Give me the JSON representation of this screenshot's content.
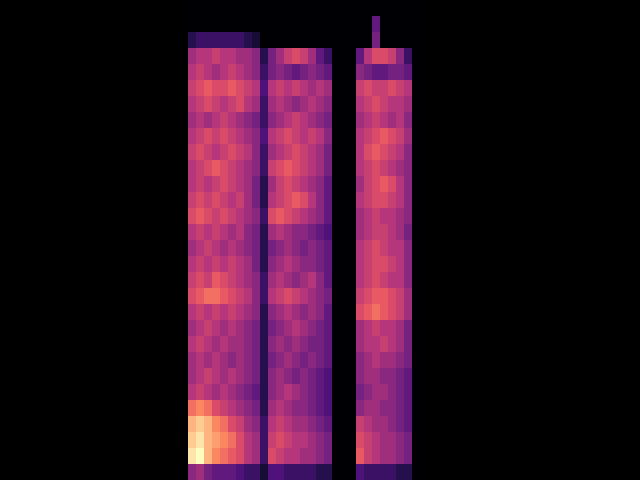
{
  "chart_data": {
    "type": "heatmap",
    "x": [
      192,
      200,
      208,
      216,
      224,
      232,
      240,
      248,
      256,
      264,
      272,
      280,
      288,
      296,
      304,
      312,
      320,
      328,
      336,
      344,
      352,
      360,
      368,
      376,
      384,
      392,
      400,
      408,
      416
    ],
    "y": [
      8,
      24,
      40,
      56,
      72,
      88,
      104,
      120,
      136,
      152,
      168,
      184,
      200,
      216,
      232,
      248,
      264,
      280,
      296,
      312,
      328,
      344,
      360,
      376,
      392,
      408,
      424,
      440,
      456,
      472
    ],
    "cells": [
      [
        0,
        0,
        0,
        0,
        0,
        0,
        0,
        0,
        0,
        0,
        0,
        0,
        0,
        0,
        0,
        0,
        0,
        0,
        0,
        0,
        0,
        0,
        0,
        0,
        0,
        0,
        0,
        0,
        0
      ],
      [
        0,
        0,
        0,
        0,
        0,
        0,
        0,
        0,
        0,
        0,
        0,
        0,
        0,
        0,
        0,
        0,
        0,
        0,
        0,
        0,
        0,
        0,
        0,
        0.3,
        0,
        0,
        0,
        0,
        0
      ],
      [
        0.15,
        0.2,
        0.2,
        0.2,
        0.2,
        0.2,
        0.2,
        0.15,
        0.1,
        0,
        0,
        0,
        0,
        0,
        0,
        0,
        0,
        0,
        0,
        0,
        0,
        0,
        0,
        0.35,
        0,
        0,
        0,
        0,
        0
      ],
      [
        0.45,
        0.5,
        0.5,
        0.55,
        0.5,
        0.5,
        0.45,
        0.45,
        0.4,
        0.15,
        0.35,
        0.45,
        0.55,
        0.6,
        0.55,
        0.45,
        0.3,
        0.2,
        0,
        0,
        0,
        0.3,
        0.5,
        0.6,
        0.6,
        0.55,
        0.4,
        0.2,
        0
      ],
      [
        0.5,
        0.55,
        0.5,
        0.45,
        0.5,
        0.55,
        0.5,
        0.45,
        0.4,
        0.2,
        0.35,
        0.4,
        0.35,
        0.3,
        0.35,
        0.4,
        0.35,
        0.3,
        0,
        0,
        0,
        0.4,
        0.35,
        0.3,
        0.3,
        0.35,
        0.35,
        0.3,
        0
      ],
      [
        0.55,
        0.6,
        0.65,
        0.6,
        0.6,
        0.65,
        0.6,
        0.55,
        0.5,
        0.25,
        0.5,
        0.55,
        0.5,
        0.55,
        0.5,
        0.45,
        0.5,
        0.45,
        0,
        0,
        0,
        0.55,
        0.6,
        0.55,
        0.55,
        0.6,
        0.55,
        0.5,
        0
      ],
      [
        0.5,
        0.55,
        0.6,
        0.55,
        0.5,
        0.55,
        0.6,
        0.5,
        0.45,
        0.2,
        0.45,
        0.5,
        0.45,
        0.4,
        0.45,
        0.5,
        0.45,
        0.4,
        0,
        0,
        0,
        0.5,
        0.55,
        0.6,
        0.55,
        0.5,
        0.5,
        0.45,
        0
      ],
      [
        0.45,
        0.5,
        0.45,
        0.5,
        0.55,
        0.5,
        0.45,
        0.4,
        0.35,
        0.2,
        0.4,
        0.45,
        0.5,
        0.55,
        0.5,
        0.45,
        0.4,
        0.35,
        0,
        0,
        0,
        0.45,
        0.5,
        0.55,
        0.5,
        0.45,
        0.5,
        0.4,
        0
      ],
      [
        0.5,
        0.55,
        0.6,
        0.55,
        0.6,
        0.55,
        0.5,
        0.45,
        0.4,
        0.25,
        0.5,
        0.55,
        0.6,
        0.55,
        0.5,
        0.55,
        0.5,
        0.4,
        0,
        0,
        0,
        0.5,
        0.55,
        0.6,
        0.65,
        0.6,
        0.55,
        0.45,
        0
      ],
      [
        0.55,
        0.6,
        0.55,
        0.5,
        0.55,
        0.6,
        0.55,
        0.5,
        0.4,
        0.2,
        0.45,
        0.5,
        0.55,
        0.6,
        0.55,
        0.5,
        0.45,
        0.35,
        0,
        0,
        0,
        0.5,
        0.6,
        0.65,
        0.6,
        0.55,
        0.5,
        0.4,
        0
      ],
      [
        0.5,
        0.55,
        0.6,
        0.65,
        0.6,
        0.55,
        0.5,
        0.45,
        0.4,
        0.2,
        0.55,
        0.6,
        0.65,
        0.6,
        0.55,
        0.5,
        0.45,
        0.35,
        0,
        0,
        0,
        0.5,
        0.55,
        0.6,
        0.55,
        0.5,
        0.45,
        0.4,
        0
      ],
      [
        0.5,
        0.55,
        0.5,
        0.55,
        0.6,
        0.55,
        0.5,
        0.45,
        0.35,
        0.15,
        0.45,
        0.55,
        0.6,
        0.55,
        0.5,
        0.45,
        0.4,
        0.3,
        0,
        0,
        0,
        0.45,
        0.55,
        0.6,
        0.65,
        0.6,
        0.5,
        0.4,
        0
      ],
      [
        0.55,
        0.6,
        0.55,
        0.6,
        0.55,
        0.5,
        0.55,
        0.45,
        0.35,
        0.15,
        0.5,
        0.55,
        0.6,
        0.65,
        0.6,
        0.5,
        0.4,
        0.3,
        0,
        0,
        0,
        0.5,
        0.55,
        0.6,
        0.6,
        0.55,
        0.5,
        0.4,
        0
      ],
      [
        0.6,
        0.65,
        0.6,
        0.55,
        0.6,
        0.55,
        0.5,
        0.45,
        0.4,
        0.2,
        0.6,
        0.65,
        0.6,
        0.55,
        0.5,
        0.45,
        0.4,
        0.3,
        0,
        0,
        0,
        0.45,
        0.5,
        0.55,
        0.5,
        0.5,
        0.45,
        0.4,
        0
      ],
      [
        0.5,
        0.55,
        0.5,
        0.55,
        0.5,
        0.45,
        0.5,
        0.4,
        0.35,
        0.15,
        0.45,
        0.5,
        0.45,
        0.4,
        0.4,
        0.35,
        0.3,
        0.25,
        0,
        0,
        0,
        0.45,
        0.5,
        0.55,
        0.55,
        0.5,
        0.45,
        0.35,
        0
      ],
      [
        0.45,
        0.5,
        0.55,
        0.5,
        0.45,
        0.5,
        0.45,
        0.4,
        0.35,
        0.15,
        0.35,
        0.4,
        0.45,
        0.4,
        0.35,
        0.4,
        0.35,
        0.3,
        0,
        0,
        0,
        0.5,
        0.55,
        0.6,
        0.55,
        0.5,
        0.5,
        0.4,
        0
      ],
      [
        0.5,
        0.55,
        0.5,
        0.55,
        0.5,
        0.55,
        0.5,
        0.45,
        0.35,
        0.15,
        0.4,
        0.45,
        0.5,
        0.45,
        0.4,
        0.4,
        0.35,
        0.3,
        0,
        0,
        0,
        0.5,
        0.55,
        0.6,
        0.6,
        0.55,
        0.5,
        0.4,
        0
      ],
      [
        0.55,
        0.6,
        0.55,
        0.65,
        0.6,
        0.55,
        0.5,
        0.45,
        0.4,
        0.2,
        0.45,
        0.5,
        0.45,
        0.4,
        0.45,
        0.5,
        0.4,
        0.3,
        0,
        0,
        0,
        0.5,
        0.55,
        0.6,
        0.55,
        0.5,
        0.5,
        0.4,
        0
      ],
      [
        0.6,
        0.65,
        0.7,
        0.7,
        0.65,
        0.6,
        0.55,
        0.5,
        0.4,
        0.2,
        0.5,
        0.55,
        0.6,
        0.55,
        0.5,
        0.45,
        0.4,
        0.35,
        0,
        0,
        0,
        0.55,
        0.6,
        0.65,
        0.65,
        0.6,
        0.55,
        0.45,
        0
      ],
      [
        0.5,
        0.55,
        0.5,
        0.55,
        0.5,
        0.55,
        0.5,
        0.45,
        0.4,
        0.15,
        0.4,
        0.45,
        0.5,
        0.45,
        0.4,
        0.45,
        0.4,
        0.3,
        0,
        0,
        0,
        0.6,
        0.65,
        0.7,
        0.65,
        0.6,
        0.55,
        0.45,
        0
      ],
      [
        0.45,
        0.5,
        0.55,
        0.5,
        0.45,
        0.5,
        0.45,
        0.4,
        0.35,
        0.15,
        0.35,
        0.4,
        0.45,
        0.5,
        0.45,
        0.4,
        0.35,
        0.3,
        0,
        0,
        0,
        0.45,
        0.5,
        0.55,
        0.5,
        0.5,
        0.45,
        0.35,
        0
      ],
      [
        0.5,
        0.55,
        0.5,
        0.45,
        0.5,
        0.45,
        0.45,
        0.4,
        0.35,
        0.15,
        0.4,
        0.45,
        0.4,
        0.45,
        0.4,
        0.35,
        0.35,
        0.3,
        0,
        0,
        0,
        0.45,
        0.5,
        0.5,
        0.55,
        0.5,
        0.45,
        0.35,
        0
      ],
      [
        0.45,
        0.5,
        0.45,
        0.5,
        0.45,
        0.4,
        0.45,
        0.4,
        0.35,
        0.15,
        0.35,
        0.4,
        0.45,
        0.4,
        0.35,
        0.4,
        0.35,
        0.3,
        0,
        0,
        0,
        0.4,
        0.45,
        0.5,
        0.45,
        0.45,
        0.4,
        0.35,
        0
      ],
      [
        0.45,
        0.5,
        0.55,
        0.5,
        0.45,
        0.5,
        0.45,
        0.4,
        0.35,
        0.15,
        0.4,
        0.45,
        0.4,
        0.35,
        0.4,
        0.35,
        0.3,
        0.25,
        0,
        0,
        0,
        0.4,
        0.45,
        0.45,
        0.4,
        0.4,
        0.35,
        0.3,
        0
      ],
      [
        0.5,
        0.55,
        0.5,
        0.45,
        0.5,
        0.45,
        0.4,
        0.35,
        0.3,
        0.15,
        0.4,
        0.45,
        0.5,
        0.45,
        0.4,
        0.35,
        0.3,
        0.25,
        0,
        0,
        0,
        0.35,
        0.4,
        0.45,
        0.45,
        0.4,
        0.35,
        0.3,
        0
      ],
      [
        0.7,
        0.75,
        0.7,
        0.6,
        0.55,
        0.5,
        0.45,
        0.4,
        0.35,
        0.15,
        0.45,
        0.5,
        0.45,
        0.4,
        0.4,
        0.35,
        0.3,
        0.25,
        0,
        0,
        0,
        0.4,
        0.45,
        0.45,
        0.4,
        0.4,
        0.35,
        0.3,
        0
      ],
      [
        0.85,
        0.9,
        0.85,
        0.75,
        0.7,
        0.6,
        0.55,
        0.45,
        0.4,
        0.2,
        0.5,
        0.55,
        0.5,
        0.45,
        0.45,
        0.4,
        0.35,
        0.3,
        0,
        0,
        0,
        0.55,
        0.5,
        0.45,
        0.45,
        0.4,
        0.35,
        0.3,
        0
      ],
      [
        0.9,
        0.95,
        0.85,
        0.8,
        0.75,
        0.7,
        0.6,
        0.5,
        0.45,
        0.2,
        0.55,
        0.6,
        0.55,
        0.5,
        0.5,
        0.45,
        0.4,
        0.35,
        0,
        0,
        0,
        0.6,
        0.55,
        0.5,
        0.45,
        0.45,
        0.4,
        0.35,
        0
      ],
      [
        0.95,
        1.0,
        0.85,
        0.75,
        0.7,
        0.65,
        0.6,
        0.5,
        0.45,
        0.2,
        0.6,
        0.55,
        0.5,
        0.5,
        0.45,
        0.45,
        0.4,
        0.35,
        0,
        0,
        0,
        0.65,
        0.55,
        0.5,
        0.45,
        0.45,
        0.4,
        0.35,
        0
      ],
      [
        0.4,
        0.45,
        0.35,
        0.3,
        0.3,
        0.3,
        0.25,
        0.2,
        0.2,
        0.1,
        0.25,
        0.25,
        0.2,
        0.2,
        0.2,
        0.2,
        0.15,
        0.15,
        0,
        0,
        0,
        0.25,
        0.2,
        0.2,
        0.2,
        0.2,
        0.15,
        0.15,
        0
      ]
    ],
    "xlim": [
      0,
      640
    ],
    "ylim": [
      480,
      0
    ],
    "zlim": [
      0,
      1
    ],
    "tick_labels": false
  }
}
